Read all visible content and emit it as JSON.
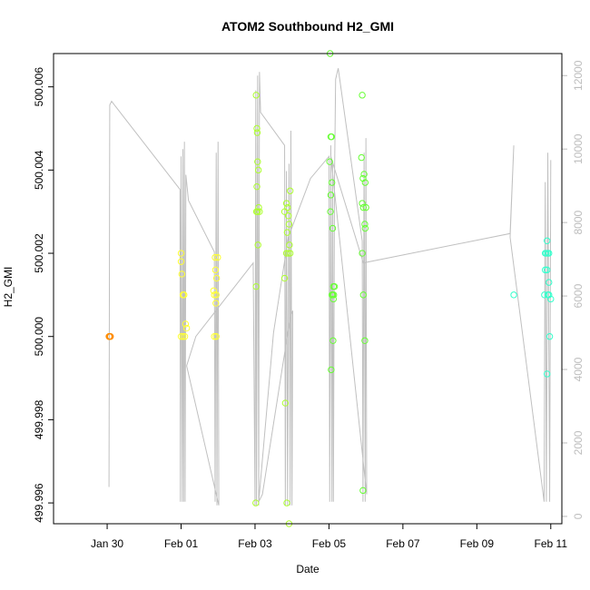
{
  "chart_data": {
    "type": "scatter",
    "title": "ATOM2 Southbound H2_GMI",
    "xlabel": "Date",
    "ylabel": "H2_GMI",
    "x_ticks": [
      "Jan 30",
      "Feb 01",
      "Feb 03",
      "Feb 05",
      "Feb 07",
      "Feb 09",
      "Feb 11"
    ],
    "x_range_days": [
      -2.45,
      11.3
    ],
    "ylim": [
      499.9955,
      500.0068
    ],
    "y_ticks": [
      "499.996",
      "499.998",
      "500.000",
      "500.002",
      "500.004",
      "500.006"
    ],
    "right_axis": {
      "ylim": [
        -200,
        12600
      ],
      "ticks": [
        "0",
        "2000",
        "4000",
        "6000",
        "8000",
        "10000",
        "12000"
      ],
      "color": "#bdbdbd"
    },
    "series": [
      {
        "color": "#ff8c00",
        "points": [
          [
            -0.95,
            500.0
          ],
          [
            -0.93,
            500.0
          ],
          [
            -0.91,
            500.0
          ],
          [
            -0.94,
            500.0
          ]
        ]
      },
      {
        "color": "#ffff33",
        "points": [
          [
            1.0,
            500.002
          ],
          [
            1.0,
            500.0018
          ],
          [
            1.02,
            500.0015
          ],
          [
            1.05,
            500.001
          ],
          [
            1.08,
            500.001
          ],
          [
            1.0,
            500.0
          ],
          [
            1.05,
            500.0
          ],
          [
            1.12,
            500.0003
          ],
          [
            1.15,
            500.0002
          ],
          [
            1.1,
            500.0
          ],
          [
            1.92,
            500.0019
          ],
          [
            1.93,
            500.0016
          ],
          [
            1.96,
            500.0014
          ],
          [
            1.88,
            500.0011
          ],
          [
            1.9,
            500.001
          ],
          [
            1.95,
            500.001
          ],
          [
            1.94,
            500.0008
          ],
          [
            1.9,
            500.0
          ],
          [
            1.95,
            500.0
          ],
          [
            1.99,
            500.0019
          ]
        ]
      },
      {
        "color": "#adff2f",
        "points": [
          [
            3.03,
            500.0058
          ],
          [
            3.05,
            500.005
          ],
          [
            3.06,
            500.0049
          ],
          [
            3.07,
            500.0042
          ],
          [
            3.09,
            500.004
          ],
          [
            3.05,
            500.0036
          ],
          [
            3.04,
            500.003
          ],
          [
            3.07,
            500.003
          ],
          [
            3.1,
            500.0031
          ],
          [
            3.12,
            500.003
          ],
          [
            3.08,
            500.0022
          ],
          [
            3.03,
            500.0012
          ],
          [
            3.02,
            499.996
          ],
          [
            3.8,
            500.003
          ],
          [
            3.85,
            500.0032
          ],
          [
            3.88,
            500.0031
          ],
          [
            3.95,
            500.0035
          ],
          [
            3.9,
            500.0029
          ],
          [
            3.92,
            500.0027
          ],
          [
            3.87,
            500.0025
          ],
          [
            3.93,
            500.0022
          ],
          [
            3.85,
            500.002
          ],
          [
            3.9,
            500.002
          ],
          [
            3.95,
            500.002
          ],
          [
            3.8,
            500.0014
          ],
          [
            3.82,
            499.9984
          ],
          [
            3.86,
            499.996
          ],
          [
            3.92,
            499.9955
          ]
        ]
      },
      {
        "color": "#66ff33",
        "points": [
          [
            5.03,
            500.0068
          ],
          [
            5.05,
            500.0048
          ],
          [
            5.07,
            500.0048
          ],
          [
            5.02,
            500.0042
          ],
          [
            5.08,
            500.0037
          ],
          [
            5.05,
            500.0034
          ],
          [
            5.04,
            500.003
          ],
          [
            5.1,
            500.0026
          ],
          [
            5.12,
            500.0012
          ],
          [
            5.15,
            500.0012
          ],
          [
            5.1,
            500.001
          ],
          [
            5.13,
            500.001
          ],
          [
            5.08,
            500.001
          ],
          [
            5.12,
            500.0009
          ],
          [
            5.11,
            499.9999
          ],
          [
            5.06,
            499.9992
          ],
          [
            5.9,
            500.0058
          ],
          [
            5.88,
            500.0043
          ],
          [
            5.95,
            500.0039
          ],
          [
            5.92,
            500.0038
          ],
          [
            5.98,
            500.0037
          ],
          [
            5.93,
            500.0031
          ],
          [
            6.0,
            500.0031
          ],
          [
            5.9,
            500.0032
          ],
          [
            5.97,
            500.0027
          ],
          [
            5.98,
            500.0026
          ],
          [
            5.9,
            500.002
          ],
          [
            5.93,
            500.001
          ],
          [
            5.97,
            499.9999
          ],
          [
            5.92,
            499.9963
          ]
        ]
      },
      {
        "color": "#33ffcc",
        "points": [
          [
            10.0,
            500.001
          ],
          [
            10.85,
            500.002
          ],
          [
            10.88,
            500.002
          ],
          [
            10.9,
            500.0023
          ],
          [
            10.92,
            500.002
          ],
          [
            10.95,
            500.002
          ],
          [
            10.85,
            500.0016
          ],
          [
            10.9,
            500.0016
          ],
          [
            10.95,
            500.0013
          ],
          [
            10.83,
            500.001
          ],
          [
            10.92,
            500.001
          ],
          [
            10.95,
            500.001
          ],
          [
            11.0,
            500.0009
          ],
          [
            10.97,
            500.0
          ],
          [
            10.9,
            499.9991
          ]
        ]
      }
    ],
    "line_series": {
      "color": "#c0c0c0",
      "axis": "right",
      "points": [
        [
          -0.95,
          800
        ],
        [
          -0.93,
          11200
        ],
        [
          -0.88,
          11300
        ],
        [
          0.97,
          8900
        ],
        [
          0.98,
          400
        ],
        [
          1.0,
          9800
        ],
        [
          1.03,
          400
        ],
        [
          1.05,
          10000
        ],
        [
          1.07,
          400
        ],
        [
          1.09,
          10200
        ],
        [
          1.11,
          400
        ],
        [
          1.13,
          9300
        ],
        [
          1.2,
          8600
        ],
        [
          1.9,
          7200
        ],
        [
          1.92,
          400
        ],
        [
          1.95,
          9900
        ],
        [
          1.97,
          300
        ],
        [
          2.0,
          10200
        ],
        [
          2.02,
          300
        ],
        [
          1.15,
          4100
        ],
        [
          1.4,
          4900
        ],
        [
          2.95,
          6900
        ],
        [
          3.0,
          300
        ],
        [
          3.02,
          11600
        ],
        [
          3.04,
          300
        ],
        [
          3.07,
          12000
        ],
        [
          3.1,
          300
        ],
        [
          3.12,
          12100
        ],
        [
          3.15,
          11000
        ],
        [
          3.8,
          10100
        ],
        [
          3.82,
          300
        ],
        [
          3.85,
          9400
        ],
        [
          3.88,
          300
        ],
        [
          3.92,
          9600
        ],
        [
          3.95,
          300
        ],
        [
          3.97,
          10500
        ],
        [
          4.0,
          300
        ],
        [
          4.02,
          5600
        ],
        [
          3.95,
          5400
        ],
        [
          3.2,
          600
        ],
        [
          3.1,
          400
        ],
        [
          3.5,
          5000
        ],
        [
          3.9,
          7600
        ],
        [
          4.5,
          9200
        ],
        [
          5.0,
          9800
        ],
        [
          5.02,
          400
        ],
        [
          5.05,
          10100
        ],
        [
          5.08,
          400
        ],
        [
          5.1,
          9600
        ],
        [
          5.12,
          400
        ],
        [
          5.15,
          9200
        ],
        [
          5.18,
          11900
        ],
        [
          5.25,
          12200
        ],
        [
          5.9,
          7500
        ],
        [
          5.92,
          400
        ],
        [
          5.95,
          9900
        ],
        [
          5.98,
          400
        ],
        [
          6.0,
          10300
        ],
        [
          6.02,
          600
        ],
        [
          5.05,
          9800
        ],
        [
          5.93,
          6900
        ],
        [
          9.9,
          7700
        ],
        [
          10.0,
          10100
        ],
        [
          9.9,
          7600
        ],
        [
          10.82,
          400
        ],
        [
          10.85,
          9100
        ],
        [
          10.88,
          400
        ],
        [
          10.92,
          9900
        ],
        [
          10.97,
          400
        ],
        [
          11.0,
          9700
        ]
      ]
    }
  }
}
